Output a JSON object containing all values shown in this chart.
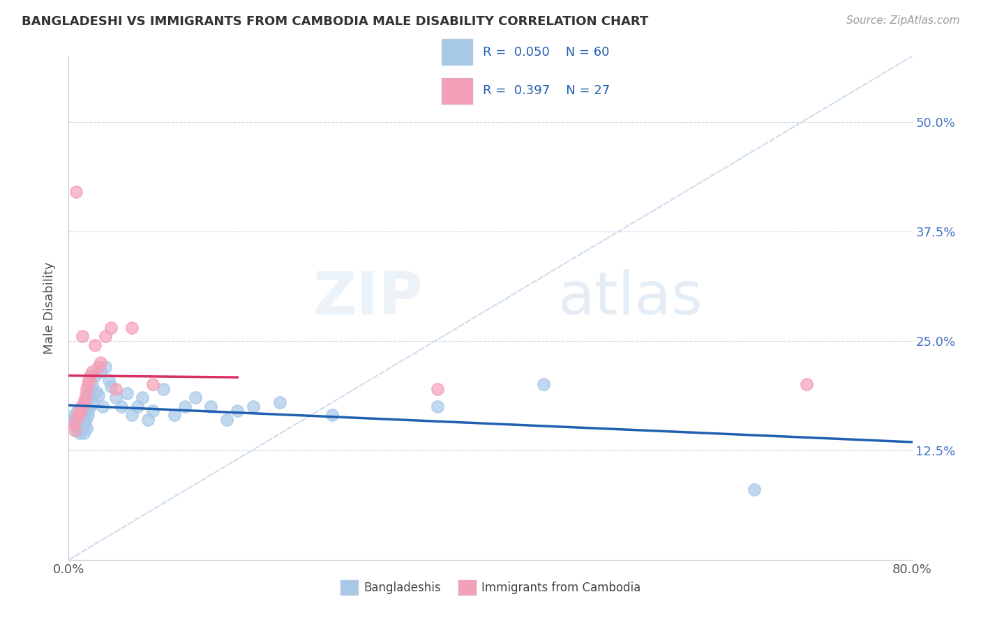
{
  "title": "BANGLADESHI VS IMMIGRANTS FROM CAMBODIA MALE DISABILITY CORRELATION CHART",
  "source": "Source: ZipAtlas.com",
  "ylabel": "Male Disability",
  "xlim": [
    0.0,
    0.8
  ],
  "ylim": [
    0.0,
    0.575
  ],
  "ytick_labels": [
    "12.5%",
    "25.0%",
    "37.5%",
    "50.0%"
  ],
  "ytick_positions": [
    0.125,
    0.25,
    0.375,
    0.5
  ],
  "legend_r1": "0.050",
  "legend_n1": "60",
  "legend_r2": "0.397",
  "legend_n2": "27",
  "color_blue": "#a8c8e8",
  "color_pink": "#f4a0b8",
  "line_color_blue": "#2060b0",
  "line_color_pink": "#d83060",
  "ref_line_color": "#c8d8e8",
  "watermark_zip": "ZIP",
  "watermark_atlas": "atlas",
  "bangladeshi_x": [
    0.005,
    0.005,
    0.006,
    0.007,
    0.008,
    0.008,
    0.009,
    0.009,
    0.01,
    0.01,
    0.011,
    0.011,
    0.012,
    0.012,
    0.013,
    0.013,
    0.014,
    0.014,
    0.015,
    0.015,
    0.016,
    0.016,
    0.017,
    0.017,
    0.018,
    0.018,
    0.019,
    0.02,
    0.021,
    0.022,
    0.023,
    0.025,
    0.026,
    0.028,
    0.03,
    0.032,
    0.035,
    0.038,
    0.04,
    0.045,
    0.05,
    0.055,
    0.06,
    0.065,
    0.07,
    0.075,
    0.08,
    0.09,
    0.1,
    0.11,
    0.12,
    0.135,
    0.15,
    0.16,
    0.175,
    0.2,
    0.25,
    0.35,
    0.45,
    0.65
  ],
  "bangladeshi_y": [
    0.165,
    0.158,
    0.162,
    0.155,
    0.17,
    0.148,
    0.16,
    0.152,
    0.168,
    0.145,
    0.172,
    0.155,
    0.165,
    0.15,
    0.175,
    0.16,
    0.168,
    0.145,
    0.178,
    0.155,
    0.182,
    0.16,
    0.175,
    0.15,
    0.19,
    0.165,
    0.172,
    0.195,
    0.185,
    0.2,
    0.178,
    0.21,
    0.192,
    0.188,
    0.215,
    0.175,
    0.22,
    0.205,
    0.198,
    0.185,
    0.175,
    0.19,
    0.165,
    0.175,
    0.185,
    0.16,
    0.17,
    0.195,
    0.165,
    0.175,
    0.185,
    0.175,
    0.16,
    0.17,
    0.175,
    0.18,
    0.165,
    0.175,
    0.2,
    0.08
  ],
  "cambodia_x": [
    0.005,
    0.006,
    0.007,
    0.008,
    0.009,
    0.01,
    0.011,
    0.012,
    0.013,
    0.014,
    0.015,
    0.016,
    0.017,
    0.018,
    0.019,
    0.02,
    0.022,
    0.025,
    0.028,
    0.03,
    0.035,
    0.04,
    0.045,
    0.06,
    0.08,
    0.35,
    0.7
  ],
  "cambodia_y": [
    0.155,
    0.148,
    0.42,
    0.162,
    0.165,
    0.168,
    0.17,
    0.175,
    0.255,
    0.178,
    0.182,
    0.188,
    0.195,
    0.2,
    0.205,
    0.21,
    0.215,
    0.245,
    0.22,
    0.225,
    0.255,
    0.265,
    0.195,
    0.265,
    0.2,
    0.195,
    0.2
  ]
}
